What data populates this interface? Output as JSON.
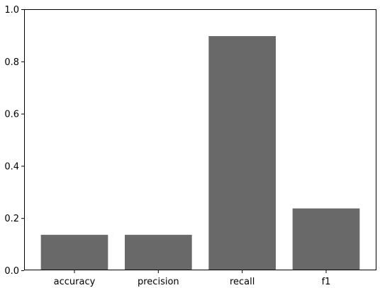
{
  "chart_data": {
    "type": "bar",
    "categories": [
      "accuracy",
      "precision",
      "recall",
      "f1"
    ],
    "values": [
      0.136,
      0.136,
      0.897,
      0.237
    ],
    "title": "",
    "xlabel": "",
    "ylabel": "",
    "ylim": [
      0.0,
      1.0
    ],
    "yticks": [
      "0.0",
      "0.2",
      "0.4",
      "0.6",
      "0.8",
      "1.0"
    ],
    "grid": false,
    "legend": "none",
    "bar_color": "#696969"
  }
}
